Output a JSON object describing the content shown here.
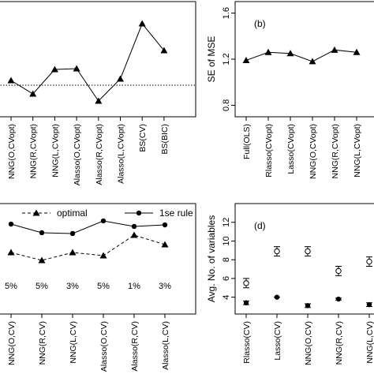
{
  "chart_data": [
    {
      "type": "line",
      "categories": [
        "NNG(O,CVopt)",
        "NNG(R,CVopt)",
        "NNG(L,CVopt)",
        "Alasso(O,CVopt)",
        "Alasso(R,CVopt)",
        "Alasso(L,CVopt)",
        "BS(CV)",
        "BS(BIC)"
      ],
      "series": [
        {
          "color": "#000000",
          "marker": "triangle",
          "dash": false,
          "values": [
            31.5,
            19.9,
            41.1,
            41.8,
            13.7,
            32.9,
            80.8,
            57.5
          ]
        }
      ],
      "reference_line": 27.4,
      "ylim": [
        0,
        100
      ]
    },
    {
      "type": "line",
      "annotation": "(b)",
      "ylabel": "SE of MSE",
      "categories": [
        "Full(OLS)",
        "Rlasso(CVopt)",
        "Lasso(CVopt)",
        "NNG(O,CVopt)",
        "NNG(R,CVopt)",
        "NNG(L,CVopt)"
      ],
      "series": [
        {
          "color": "#000000",
          "marker": "triangle",
          "dash": false,
          "values": [
            1.19,
            1.26,
            1.25,
            1.18,
            1.28,
            1.26
          ]
        }
      ],
      "ylim": [
        0.7,
        1.7
      ],
      "yticks": [
        0.8,
        1.2,
        1.6
      ]
    },
    {
      "type": "line",
      "categories": [
        "NNG(O,CV)",
        "NNG(R,CV)",
        "NNG(L,CV)",
        "Alasso(O,CV)",
        "Alasso(R,CV)",
        "Alasso(L,CV)"
      ],
      "series": [
        {
          "name": "optimal",
          "color": "#000000",
          "marker": "triangle",
          "dash": true,
          "values": [
            55.7,
            48.6,
            55.7,
            52.9,
            71.4,
            62.9
          ]
        },
        {
          "name": "1se rule",
          "color": "#000000",
          "marker": "circle",
          "dash": false,
          "values": [
            81.4,
            73.6,
            72.9,
            84.3,
            79.3,
            80.7
          ]
        }
      ],
      "percentages": [
        5,
        5,
        3,
        5,
        1,
        3
      ],
      "value_labels": [
        "5%",
        "5%",
        "3%",
        "5%",
        "1%",
        "3%"
      ],
      "ylim": [
        0,
        100
      ],
      "legend": "top"
    },
    {
      "type": "errorbar",
      "annotation": "(d)",
      "ylabel": "Avg. No. of variables",
      "categories": [
        "Rlasso(CV)",
        "Lasso(CV)",
        "NNG(O,CV)",
        "NNG(R,CV)",
        "NNG(L,CV)"
      ],
      "series": [
        {
          "marker": "open",
          "color": "#000000",
          "values": [
            5.5,
            8.9,
            8.9,
            6.8,
            7.8
          ],
          "errors": [
            0.5,
            0.5,
            0.5,
            0.5,
            0.5
          ]
        },
        {
          "marker": "filled",
          "color": "#000000",
          "values": [
            3.4,
            4.0,
            3.1,
            3.8,
            3.2
          ],
          "errors": [
            0.2,
            0.0,
            0.2,
            0.1,
            0.2
          ]
        }
      ],
      "ylim": [
        2.2,
        14
      ],
      "yticks": [
        4,
        6,
        8,
        10,
        12
      ]
    }
  ]
}
